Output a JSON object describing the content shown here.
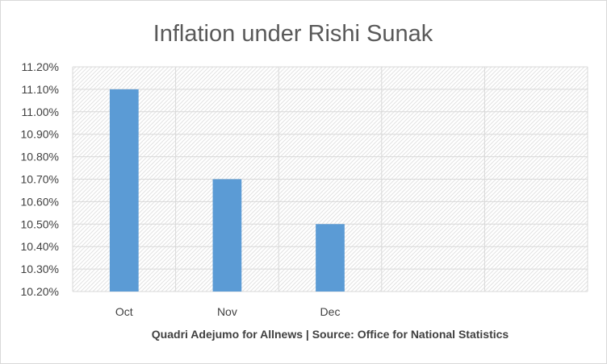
{
  "chart_data": {
    "type": "bar",
    "title": "Inflation under Rishi Sunak",
    "xlabel": "Quadri Adejumo for Allnews | Source: Office for National Statistics",
    "ylabel": "",
    "categories": [
      "Oct",
      "Nov",
      "Dec",
      "",
      ""
    ],
    "values": [
      11.1,
      10.7,
      10.5,
      null,
      null
    ],
    "value_format": "percent_2dp",
    "ylim": [
      10.2,
      11.2
    ],
    "ytick_step": 0.1,
    "grid": true,
    "plot_background": "hatched",
    "legend": "none",
    "colors": {
      "bar": "#5b9bd5",
      "grid": "#d9d9d9",
      "hatch": "#e6e6e6",
      "text": "#595959"
    }
  }
}
